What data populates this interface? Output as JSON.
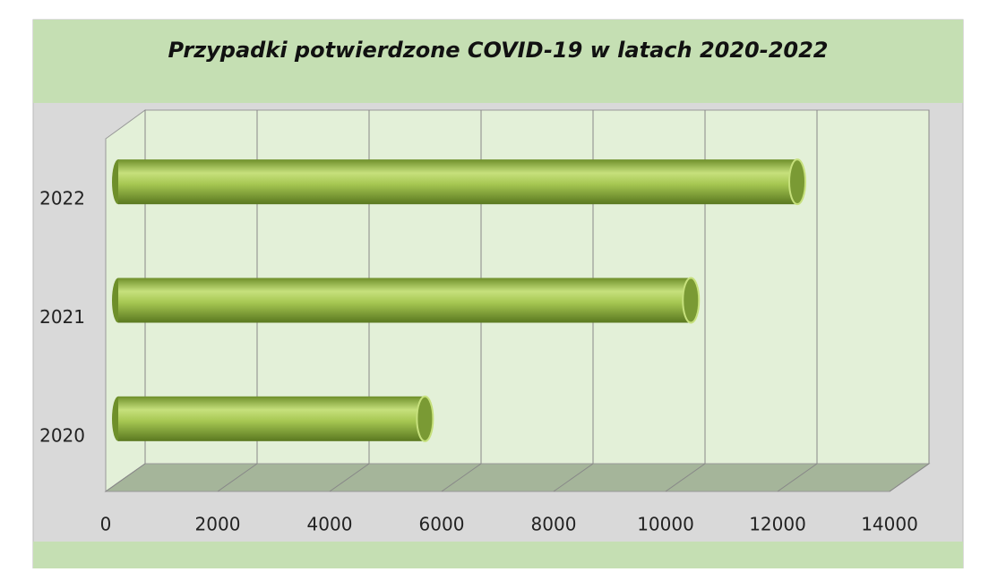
{
  "chart_data": {
    "type": "bar",
    "orientation": "horizontal",
    "title": "Przypadki potwierdzone COVID-19 w latach 2020-2022",
    "categories": [
      "2020",
      "2021",
      "2022"
    ],
    "values": [
      5350,
      10100,
      12000
    ],
    "color": "#9cc246",
    "xlim": [
      0,
      14000
    ],
    "xticks": [
      0,
      2000,
      4000,
      6000,
      8000,
      10000,
      12000,
      14000
    ],
    "grid": true
  }
}
